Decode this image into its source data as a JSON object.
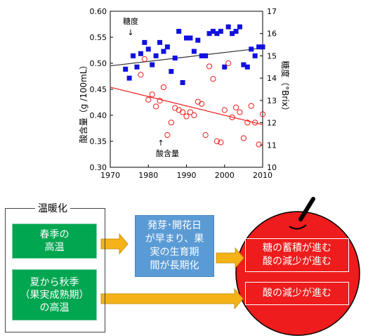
{
  "chart_data": {
    "type": "scatter",
    "x_ticks": [
      "1970",
      "1980",
      "1990",
      "2000",
      "2010"
    ],
    "xlim": [
      1970,
      2010
    ],
    "y_left_ticks": [
      "0.30",
      "0.35",
      "0.40",
      "0.45",
      "0.50",
      "0.55",
      "0.60"
    ],
    "y_left_lim": [
      0.3,
      0.6
    ],
    "y_left_label": "酸含量（g /100mL）",
    "y_right_ticks": [
      "10",
      "11",
      "12",
      "13",
      "14",
      "15",
      "16",
      "17"
    ],
    "y_right_lim": [
      10,
      17
    ],
    "y_right_label": "糖度（°Brix）",
    "grid": false,
    "series": [
      {
        "name": "糖度",
        "axis": "right",
        "marker": "square",
        "color": "#1010e0",
        "x": [
          1974,
          1975,
          1976,
          1977,
          1978,
          1979,
          1980,
          1981,
          1982,
          1983,
          1984,
          1985,
          1986,
          1987,
          1988,
          1989,
          1990,
          1991,
          1992,
          1993,
          1994,
          1995,
          1996,
          1997,
          1998,
          1999,
          2000,
          2001,
          2002,
          2003,
          2004,
          2005,
          2006,
          2007,
          2008,
          2009,
          2010
        ],
        "y": [
          14.4,
          14.0,
          15.0,
          14.5,
          15.1,
          15.6,
          15.3,
          14.6,
          15.0,
          15.6,
          15.2,
          15.4,
          14.3,
          14.9,
          16.1,
          13.8,
          15.8,
          15.8,
          15.2,
          15.7,
          15.0,
          15.0,
          16.0,
          16.1,
          16.0,
          16.1,
          14.5,
          16.3,
          16.0,
          16.1,
          16.3,
          14.6,
          14.5,
          15.3,
          15.0,
          15.4,
          15.4
        ]
      },
      {
        "name": "酸含量",
        "axis": "left",
        "marker": "circle-open",
        "color": "#ee1c1c",
        "x": [
          1978,
          1979,
          1980,
          1981,
          1982,
          1983,
          1984,
          1985,
          1986,
          1987,
          1988,
          1989,
          1990,
          1991,
          1992,
          1993,
          1994,
          1995,
          1996,
          1997,
          1998,
          1999,
          2000,
          2001,
          2002,
          2003,
          2004,
          2005,
          2006,
          2007,
          2008,
          2009,
          2010
        ],
        "y": [
          0.478,
          0.508,
          0.43,
          0.44,
          0.417,
          0.428,
          0.454,
          0.362,
          0.386,
          0.414,
          0.41,
          0.406,
          0.398,
          0.406,
          0.4,
          0.426,
          0.422,
          0.362,
          0.494,
          0.47,
          0.35,
          0.348,
          0.41,
          0.5,
          0.396,
          0.415,
          0.406,
          0.356,
          0.386,
          0.418,
          0.386,
          0.344,
          0.402
        ]
      }
    ],
    "trendlines": [
      {
        "series": "糖度",
        "axis": "right",
        "x": [
          1970,
          2010
        ],
        "y": [
          14.55,
          15.35
        ],
        "color": "#333333"
      },
      {
        "series": "酸含量",
        "axis": "left",
        "x": [
          1970,
          2010
        ],
        "y": [
          0.454,
          0.382
        ],
        "color": "#ee1c1c"
      }
    ],
    "annotations": [
      {
        "text": "糖度",
        "arrow": "↓",
        "points_to": "糖度"
      },
      {
        "text": "酸含量",
        "arrow": "↑",
        "points_to": "酸含量"
      }
    ]
  },
  "diagram": {
    "frame_title": "温暖化",
    "cause_spring": [
      "春季の",
      "高温"
    ],
    "cause_summer": [
      "夏から秋季",
      "（果実成熟期）",
      "の高温"
    ],
    "process": [
      "発芽･開花日",
      "が早まり、果",
      "実の生育期",
      "間が長期化"
    ],
    "effect_top": [
      "糖の蓄積が進む",
      "酸の減少が進む"
    ],
    "effect_bottom": "酸の減少が進む",
    "colors": {
      "green": "#00a650",
      "blue": "#5b9bd5",
      "apple": "#ee1c1c",
      "arrow": "#f5b318"
    }
  }
}
